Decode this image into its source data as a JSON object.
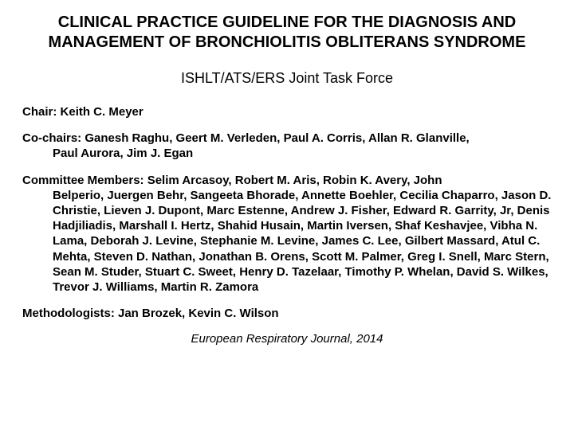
{
  "title": "CLINICAL PRACTICE GUIDELINE FOR THE DIAGNOSIS AND MANAGEMENT OF BRONCHIOLITIS OBLITERANS SYNDROME",
  "subtitle": "ISHLT/ATS/ERS Joint Task Force",
  "chair": {
    "label": "Chair: ",
    "names": "Keith C. Meyer"
  },
  "cochairs": {
    "label": "Co-chairs: ",
    "line1": "Ganesh Raghu, Geert M. Verleden, Paul A. Corris, Allan R. Glanville,",
    "line2": "Paul Aurora, Jim J. Egan"
  },
  "committee": {
    "label": "Committee Members: ",
    "line1": "Selim Arcasoy, Robert M. Aris, Robin K. Avery, John",
    "line2": "Belperio, Juergen Behr, Sangeeta Bhorade, Annette Boehler, Cecilia Chaparro, Jason D. Christie, Lieven J. Dupont, Marc Estenne, Andrew J. Fisher, Edward R. Garrity, Jr, Denis Hadjiliadis, Marshall I. Hertz, Shahid Husain, Martin Iversen, Shaf Keshavjee, Vibha N. Lama, Deborah J. Levine, Stephanie M. Levine, James C. Lee, Gilbert Massard, Atul C. Mehta, Steven D. Nathan, Jonathan B. Orens, Scott M. Palmer, Greg I. Snell, Marc Stern, Sean M. Studer, Stuart C. Sweet, Henry D. Tazelaar, Timothy P. Whelan, David S. Wilkes, Trevor J. Williams, Martin R. Zamora"
  },
  "methodologists": {
    "label": "Methodologists: ",
    "names": "Jan Brozek, Kevin C. Wilson"
  },
  "citation": "European Respiratory Journal, 2014"
}
